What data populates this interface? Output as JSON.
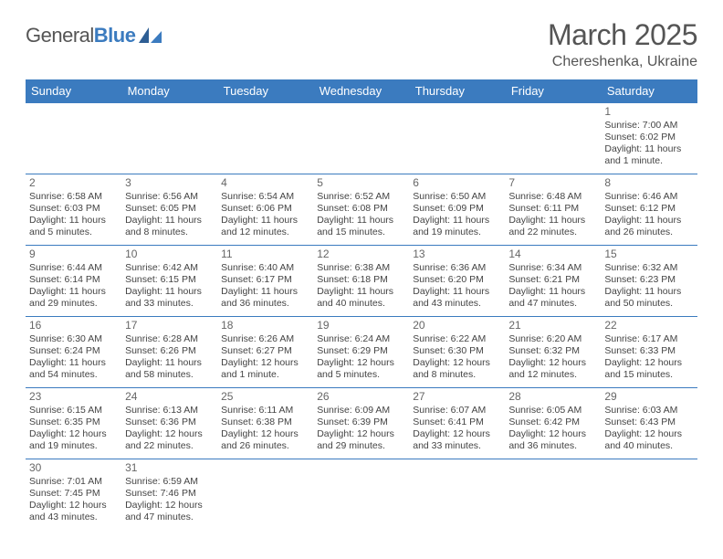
{
  "brand": {
    "part1": "General",
    "part2": "Blue"
  },
  "title": "March 2025",
  "location": "Chereshenka, Ukraine",
  "colors": {
    "header_bg": "#3b7bbf",
    "border": "#3b7bbf",
    "text": "#444444",
    "title": "#555555",
    "page_bg": "#ffffff"
  },
  "weekdays": [
    "Sunday",
    "Monday",
    "Tuesday",
    "Wednesday",
    "Thursday",
    "Friday",
    "Saturday"
  ],
  "weeks": [
    [
      null,
      null,
      null,
      null,
      null,
      null,
      {
        "n": "1",
        "sr": "Sunrise: 7:00 AM",
        "ss": "Sunset: 6:02 PM",
        "dl1": "Daylight: 11 hours",
        "dl2": "and 1 minute."
      }
    ],
    [
      {
        "n": "2",
        "sr": "Sunrise: 6:58 AM",
        "ss": "Sunset: 6:03 PM",
        "dl1": "Daylight: 11 hours",
        "dl2": "and 5 minutes."
      },
      {
        "n": "3",
        "sr": "Sunrise: 6:56 AM",
        "ss": "Sunset: 6:05 PM",
        "dl1": "Daylight: 11 hours",
        "dl2": "and 8 minutes."
      },
      {
        "n": "4",
        "sr": "Sunrise: 6:54 AM",
        "ss": "Sunset: 6:06 PM",
        "dl1": "Daylight: 11 hours",
        "dl2": "and 12 minutes."
      },
      {
        "n": "5",
        "sr": "Sunrise: 6:52 AM",
        "ss": "Sunset: 6:08 PM",
        "dl1": "Daylight: 11 hours",
        "dl2": "and 15 minutes."
      },
      {
        "n": "6",
        "sr": "Sunrise: 6:50 AM",
        "ss": "Sunset: 6:09 PM",
        "dl1": "Daylight: 11 hours",
        "dl2": "and 19 minutes."
      },
      {
        "n": "7",
        "sr": "Sunrise: 6:48 AM",
        "ss": "Sunset: 6:11 PM",
        "dl1": "Daylight: 11 hours",
        "dl2": "and 22 minutes."
      },
      {
        "n": "8",
        "sr": "Sunrise: 6:46 AM",
        "ss": "Sunset: 6:12 PM",
        "dl1": "Daylight: 11 hours",
        "dl2": "and 26 minutes."
      }
    ],
    [
      {
        "n": "9",
        "sr": "Sunrise: 6:44 AM",
        "ss": "Sunset: 6:14 PM",
        "dl1": "Daylight: 11 hours",
        "dl2": "and 29 minutes."
      },
      {
        "n": "10",
        "sr": "Sunrise: 6:42 AM",
        "ss": "Sunset: 6:15 PM",
        "dl1": "Daylight: 11 hours",
        "dl2": "and 33 minutes."
      },
      {
        "n": "11",
        "sr": "Sunrise: 6:40 AM",
        "ss": "Sunset: 6:17 PM",
        "dl1": "Daylight: 11 hours",
        "dl2": "and 36 minutes."
      },
      {
        "n": "12",
        "sr": "Sunrise: 6:38 AM",
        "ss": "Sunset: 6:18 PM",
        "dl1": "Daylight: 11 hours",
        "dl2": "and 40 minutes."
      },
      {
        "n": "13",
        "sr": "Sunrise: 6:36 AM",
        "ss": "Sunset: 6:20 PM",
        "dl1": "Daylight: 11 hours",
        "dl2": "and 43 minutes."
      },
      {
        "n": "14",
        "sr": "Sunrise: 6:34 AM",
        "ss": "Sunset: 6:21 PM",
        "dl1": "Daylight: 11 hours",
        "dl2": "and 47 minutes."
      },
      {
        "n": "15",
        "sr": "Sunrise: 6:32 AM",
        "ss": "Sunset: 6:23 PM",
        "dl1": "Daylight: 11 hours",
        "dl2": "and 50 minutes."
      }
    ],
    [
      {
        "n": "16",
        "sr": "Sunrise: 6:30 AM",
        "ss": "Sunset: 6:24 PM",
        "dl1": "Daylight: 11 hours",
        "dl2": "and 54 minutes."
      },
      {
        "n": "17",
        "sr": "Sunrise: 6:28 AM",
        "ss": "Sunset: 6:26 PM",
        "dl1": "Daylight: 11 hours",
        "dl2": "and 58 minutes."
      },
      {
        "n": "18",
        "sr": "Sunrise: 6:26 AM",
        "ss": "Sunset: 6:27 PM",
        "dl1": "Daylight: 12 hours",
        "dl2": "and 1 minute."
      },
      {
        "n": "19",
        "sr": "Sunrise: 6:24 AM",
        "ss": "Sunset: 6:29 PM",
        "dl1": "Daylight: 12 hours",
        "dl2": "and 5 minutes."
      },
      {
        "n": "20",
        "sr": "Sunrise: 6:22 AM",
        "ss": "Sunset: 6:30 PM",
        "dl1": "Daylight: 12 hours",
        "dl2": "and 8 minutes."
      },
      {
        "n": "21",
        "sr": "Sunrise: 6:20 AM",
        "ss": "Sunset: 6:32 PM",
        "dl1": "Daylight: 12 hours",
        "dl2": "and 12 minutes."
      },
      {
        "n": "22",
        "sr": "Sunrise: 6:17 AM",
        "ss": "Sunset: 6:33 PM",
        "dl1": "Daylight: 12 hours",
        "dl2": "and 15 minutes."
      }
    ],
    [
      {
        "n": "23",
        "sr": "Sunrise: 6:15 AM",
        "ss": "Sunset: 6:35 PM",
        "dl1": "Daylight: 12 hours",
        "dl2": "and 19 minutes."
      },
      {
        "n": "24",
        "sr": "Sunrise: 6:13 AM",
        "ss": "Sunset: 6:36 PM",
        "dl1": "Daylight: 12 hours",
        "dl2": "and 22 minutes."
      },
      {
        "n": "25",
        "sr": "Sunrise: 6:11 AM",
        "ss": "Sunset: 6:38 PM",
        "dl1": "Daylight: 12 hours",
        "dl2": "and 26 minutes."
      },
      {
        "n": "26",
        "sr": "Sunrise: 6:09 AM",
        "ss": "Sunset: 6:39 PM",
        "dl1": "Daylight: 12 hours",
        "dl2": "and 29 minutes."
      },
      {
        "n": "27",
        "sr": "Sunrise: 6:07 AM",
        "ss": "Sunset: 6:41 PM",
        "dl1": "Daylight: 12 hours",
        "dl2": "and 33 minutes."
      },
      {
        "n": "28",
        "sr": "Sunrise: 6:05 AM",
        "ss": "Sunset: 6:42 PM",
        "dl1": "Daylight: 12 hours",
        "dl2": "and 36 minutes."
      },
      {
        "n": "29",
        "sr": "Sunrise: 6:03 AM",
        "ss": "Sunset: 6:43 PM",
        "dl1": "Daylight: 12 hours",
        "dl2": "and 40 minutes."
      }
    ],
    [
      {
        "n": "30",
        "sr": "Sunrise: 7:01 AM",
        "ss": "Sunset: 7:45 PM",
        "dl1": "Daylight: 12 hours",
        "dl2": "and 43 minutes."
      },
      {
        "n": "31",
        "sr": "Sunrise: 6:59 AM",
        "ss": "Sunset: 7:46 PM",
        "dl1": "Daylight: 12 hours",
        "dl2": "and 47 minutes."
      },
      null,
      null,
      null,
      null,
      null
    ]
  ]
}
